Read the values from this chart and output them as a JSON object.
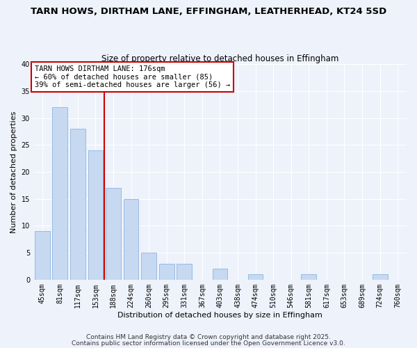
{
  "title": "TARN HOWS, DIRTHAM LANE, EFFINGHAM, LEATHERHEAD, KT24 5SD",
  "subtitle": "Size of property relative to detached houses in Effingham",
  "xlabel": "Distribution of detached houses by size in Effingham",
  "ylabel": "Number of detached properties",
  "bar_color": "#c6d9f1",
  "bar_edge_color": "#8cb4e0",
  "background_color": "#eef2fb",
  "grid_color": "#ffffff",
  "categories": [
    "45sqm",
    "81sqm",
    "117sqm",
    "153sqm",
    "188sqm",
    "224sqm",
    "260sqm",
    "295sqm",
    "331sqm",
    "367sqm",
    "403sqm",
    "438sqm",
    "474sqm",
    "510sqm",
    "546sqm",
    "581sqm",
    "617sqm",
    "653sqm",
    "689sqm",
    "724sqm",
    "760sqm"
  ],
  "values": [
    9,
    32,
    28,
    24,
    17,
    15,
    5,
    3,
    3,
    0,
    2,
    0,
    1,
    0,
    0,
    1,
    0,
    0,
    0,
    1,
    0
  ],
  "ylim": [
    0,
    40
  ],
  "yticks": [
    0,
    5,
    10,
    15,
    20,
    25,
    30,
    35,
    40
  ],
  "vline_index": 3.5,
  "annotation_text": "TARN HOWS DIRTHAM LANE: 176sqm\n← 60% of detached houses are smaller (85)\n39% of semi-detached houses are larger (56) →",
  "annotation_box_color": "#ffffff",
  "annotation_border_color": "#cc0000",
  "vline_color": "#cc0000",
  "footer_line1": "Contains HM Land Registry data © Crown copyright and database right 2025.",
  "footer_line2": "Contains public sector information licensed under the Open Government Licence v3.0.",
  "title_fontsize": 9.5,
  "subtitle_fontsize": 8.5,
  "axis_label_fontsize": 8,
  "tick_fontsize": 7,
  "annotation_fontsize": 7.5,
  "footer_fontsize": 6.5
}
